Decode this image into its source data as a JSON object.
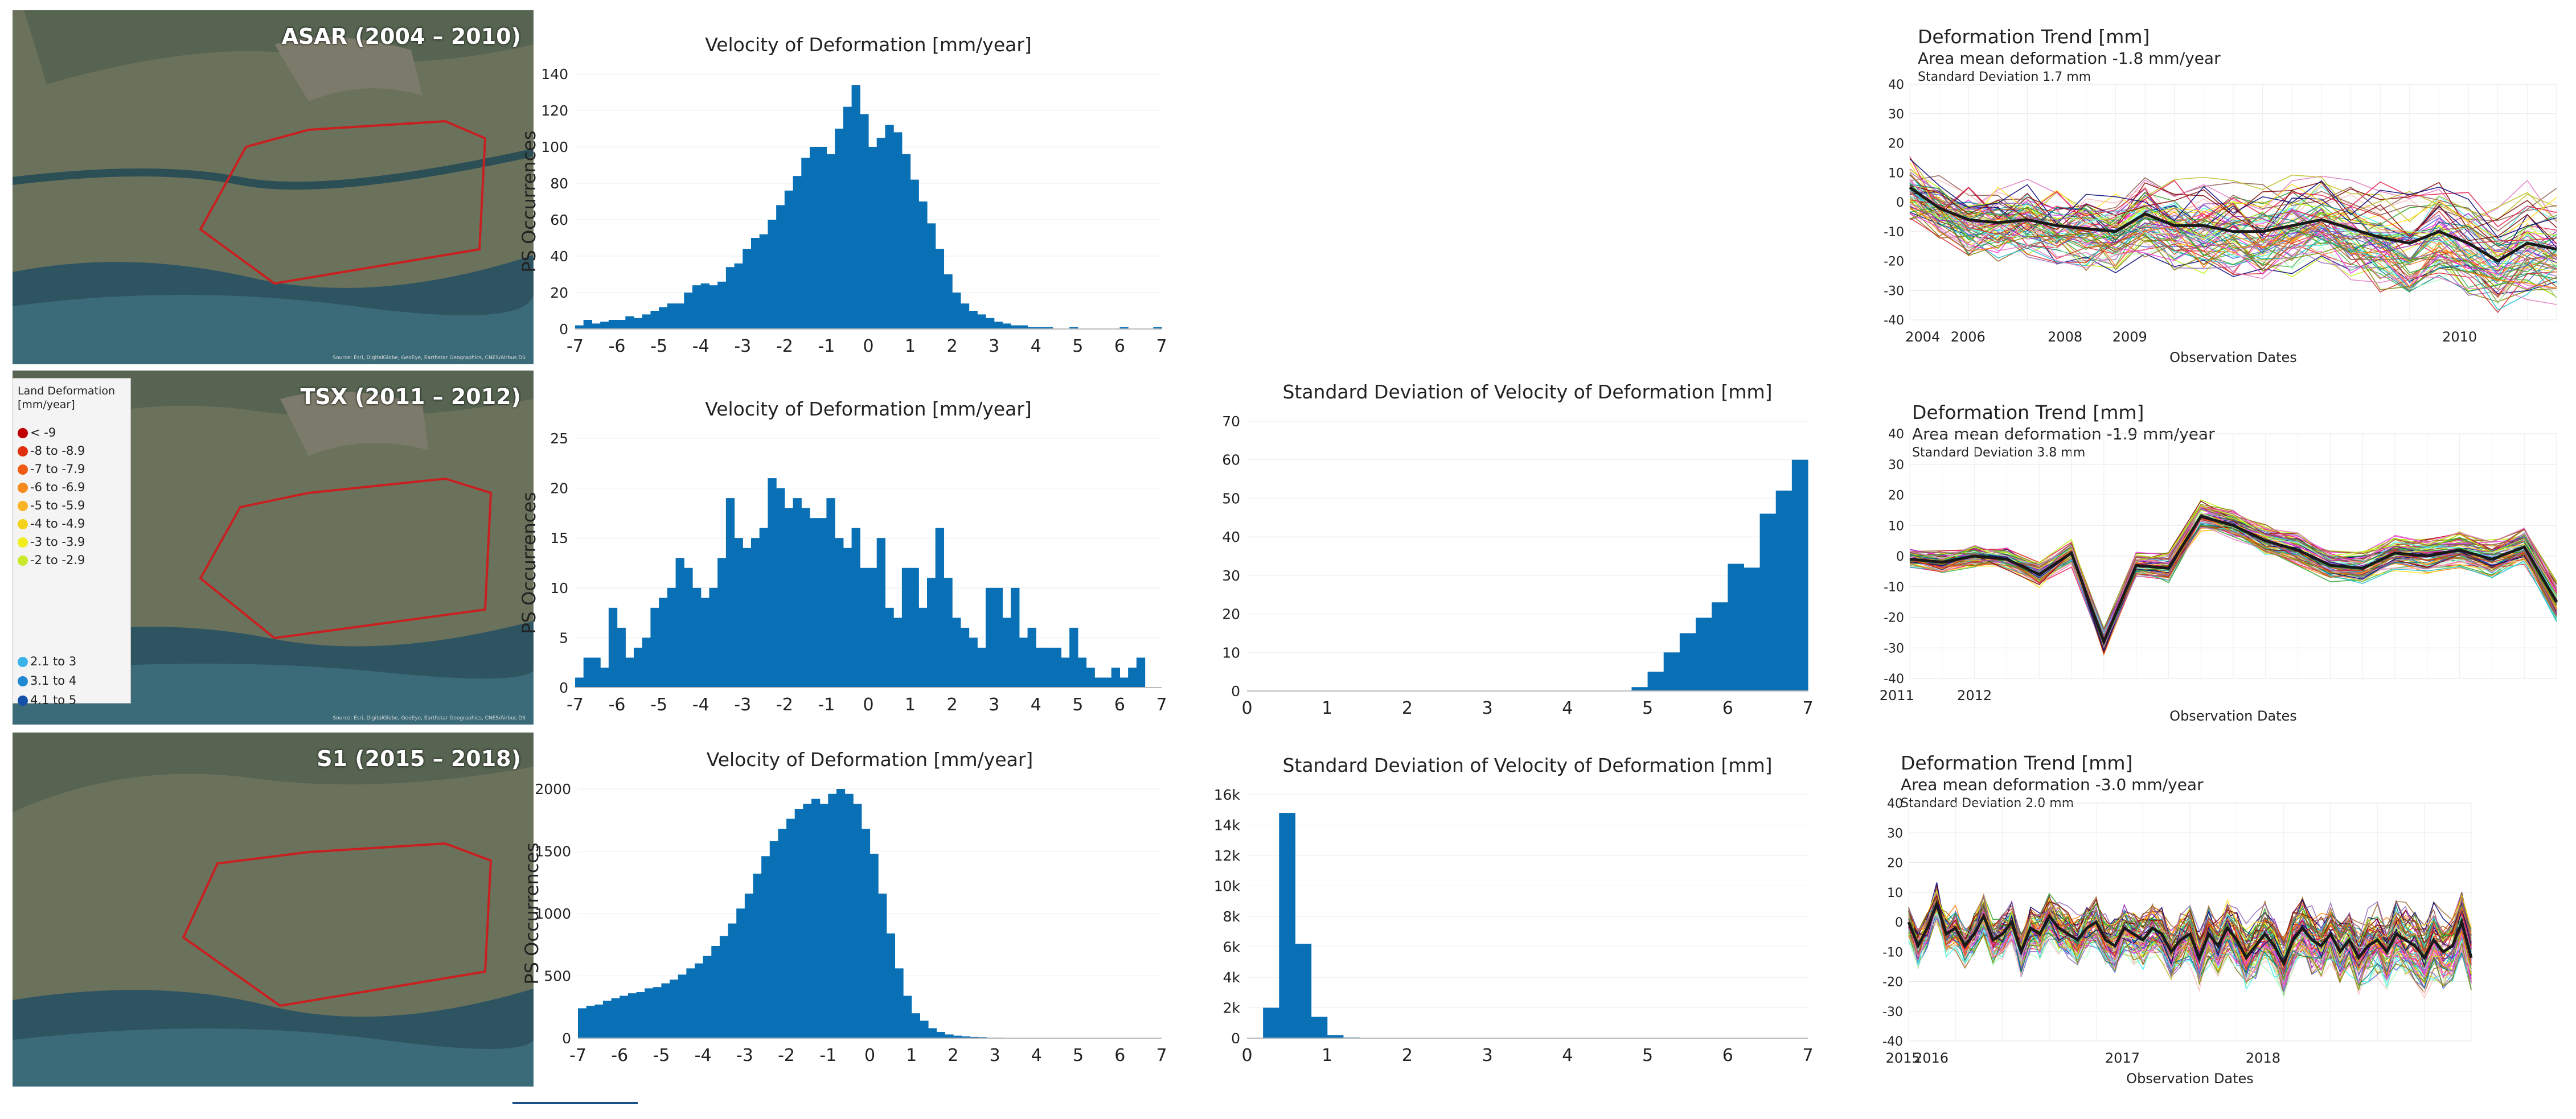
{
  "colors": {
    "bar": "#0a70b5",
    "mean_line": "#1a1a1a",
    "polygon": "#c82020"
  },
  "maps": [
    {
      "title": "ASAR (2004 – 2010)",
      "attribution": "Source: Esri, DigitalGlobe, GeoEye, Earthstar Geographics, CNES/Airbus DS"
    },
    {
      "title": "TSX (2011 – 2012)",
      "attribution": "Source: Esri, DigitalGlobe, GeoEye, Earthstar Geographics, CNES/Airbus DS"
    },
    {
      "title": "S1 (2015 – 2018)",
      "attribution": "Source: Esri, DigitalGlobe, GeoEye, Earthstar Geographics, CNES/Airbus DS"
    }
  ],
  "legend": {
    "title": "Land Deformation [mm/year]",
    "items": [
      {
        "label": "< -9",
        "color": "#c00000"
      },
      {
        "label": "-8 to -8.9",
        "color": "#e03010"
      },
      {
        "label": "-7 to -7.9",
        "color": "#f05a14"
      },
      {
        "label": "-6 to -6.9",
        "color": "#f58a1e"
      },
      {
        "label": "-5 to -5.9",
        "color": "#f8b425"
      },
      {
        "label": "-4 to -4.9",
        "color": "#f4d21c"
      },
      {
        "label": "-3 to -3.9",
        "color": "#f0ee20"
      },
      {
        "label": "-2 to -2.9",
        "color": "#c8ea2a"
      },
      {
        "label": "2.1 to 3",
        "color": "#3ab4e8"
      },
      {
        "label": "3.1 to 4",
        "color": "#2088d0"
      },
      {
        "label": "4.1 to 5",
        "color": "#1450a8"
      }
    ]
  },
  "chart_data": [
    {
      "id": "v1",
      "type": "bar",
      "title": "Velocity of Deformation [mm/year]",
      "ylabel": "PS Occurrences",
      "xlim": [
        -7,
        7
      ],
      "ylim": [
        0,
        140
      ],
      "xticks": [
        "-7",
        "-6",
        "-5",
        "-4",
        "-3",
        "-2",
        "-1",
        "0",
        "1",
        "2",
        "3",
        "4",
        "5",
        "6",
        "7"
      ],
      "yticks": [
        "0",
        "20",
        "40",
        "60",
        "80",
        "100",
        "120",
        "140"
      ],
      "bin_start": -7,
      "bin_width": 0.2,
      "values": [
        2,
        5,
        3,
        4,
        5,
        5,
        7,
        6,
        8,
        10,
        12,
        14,
        14,
        20,
        24,
        25,
        24,
        26,
        34,
        36,
        44,
        50,
        52,
        60,
        68,
        76,
        84,
        94,
        100,
        100,
        96,
        110,
        122,
        134,
        118,
        100,
        105,
        112,
        108,
        96,
        82,
        70,
        58,
        44,
        30,
        20,
        14,
        10,
        8,
        6,
        4,
        3,
        2,
        2,
        1,
        1,
        1,
        0,
        0,
        1,
        0,
        0,
        0,
        0,
        0,
        1,
        0,
        0,
        0,
        1,
        0
      ]
    },
    {
      "id": "v2",
      "type": "bar",
      "title": "Velocity of Deformation [mm/year]",
      "ylabel": "PS Occurrences",
      "xlim": [
        -7,
        7
      ],
      "ylim": [
        0,
        25
      ],
      "xticks": [
        "-7",
        "-6",
        "-5",
        "-4",
        "-3",
        "-2",
        "-1",
        "0",
        "1",
        "2",
        "3",
        "4",
        "5",
        "6",
        "7"
      ],
      "yticks": [
        "0",
        "5",
        "10",
        "15",
        "20",
        "25"
      ],
      "bin_start": -7,
      "bin_width": 0.2,
      "values": [
        1,
        3,
        3,
        2,
        8,
        6,
        3,
        4,
        5,
        8,
        9,
        10,
        13,
        12,
        10,
        9,
        10,
        13,
        19,
        15,
        14,
        15,
        16,
        21,
        20,
        18,
        19,
        18,
        17,
        17,
        19,
        15,
        14,
        16,
        12,
        12,
        15,
        8,
        7,
        12,
        12,
        8,
        11,
        16,
        11,
        7,
        6,
        5,
        4,
        10,
        10,
        7,
        10,
        5,
        6,
        4,
        4,
        4,
        3,
        6,
        3,
        2,
        1,
        1,
        2,
        1,
        2,
        3,
        0,
        0
      ]
    },
    {
      "id": "s2",
      "type": "bar",
      "title": "Standard Deviation of Velocity of Deformation [mm]",
      "ylabel": "",
      "xlim": [
        0,
        7
      ],
      "ylim": [
        0,
        70
      ],
      "xticks": [
        "0",
        "1",
        "2",
        "3",
        "4",
        "5",
        "6",
        "7"
      ],
      "yticks": [
        "0",
        "10",
        "20",
        "30",
        "40",
        "50",
        "60",
        "70"
      ],
      "bin_start": 0,
      "bin_width": 0.2,
      "values": [
        0,
        0,
        0,
        0,
        0,
        0,
        0,
        0,
        0,
        0,
        0,
        0,
        0,
        0,
        0,
        0,
        0,
        0,
        0,
        0,
        0,
        0,
        0,
        0,
        1,
        5,
        10,
        15,
        19,
        23,
        33,
        32,
        46,
        52,
        60
      ]
    },
    {
      "id": "v3",
      "type": "bar",
      "title": "Velocity of Deformation [mm/year]",
      "ylabel": "PS Occurrences",
      "xlim": [
        -7,
        7
      ],
      "ylim": [
        0,
        2000
      ],
      "xticks": [
        "-7",
        "-6",
        "-5",
        "-4",
        "-3",
        "-2",
        "-1",
        "0",
        "1",
        "2",
        "3",
        "4",
        "5",
        "6",
        "7"
      ],
      "yticks": [
        "0",
        "500",
        "1000",
        "1500",
        "2000"
      ],
      "bin_start": -7,
      "bin_width": 0.2,
      "values": [
        240,
        260,
        270,
        300,
        320,
        340,
        360,
        370,
        400,
        410,
        440,
        470,
        510,
        560,
        600,
        660,
        740,
        820,
        920,
        1040,
        1160,
        1320,
        1460,
        1580,
        1680,
        1760,
        1840,
        1880,
        1920,
        1880,
        1960,
        2080,
        1960,
        1880,
        1680,
        1480,
        1160,
        840,
        560,
        340,
        200,
        140,
        80,
        50,
        30,
        20,
        15,
        10,
        8,
        5,
        5,
        3,
        3,
        2,
        2,
        2,
        1,
        1,
        1,
        1,
        1,
        1,
        1,
        0,
        0,
        0,
        0,
        0,
        0,
        0
      ]
    },
    {
      "id": "s3",
      "type": "bar",
      "title": "Standard Deviation of Velocity of Deformation [mm]",
      "ylabel": "",
      "xlim": [
        0,
        7
      ],
      "ylim": [
        0,
        16000
      ],
      "xticks": [
        "0",
        "1",
        "2",
        "3",
        "4",
        "5",
        "6",
        "7"
      ],
      "yticks": [
        "0",
        "2k",
        "4k",
        "6k",
        "8k",
        "10k",
        "12k",
        "14k",
        "16k"
      ],
      "bin_start": 0,
      "bin_width": 0.2,
      "values": [
        0,
        2000,
        14800,
        6200,
        1400,
        200,
        50,
        20,
        10,
        5,
        5,
        0,
        0,
        0,
        0,
        0,
        0,
        0,
        0,
        0,
        0,
        0,
        0,
        0,
        0,
        0,
        0,
        0,
        0,
        0,
        0,
        0,
        0,
        0,
        0
      ]
    },
    {
      "id": "t1",
      "type": "line",
      "title": "Deformation Trend [mm]",
      "subtitle": "Area mean deformation -1.8 mm/year",
      "note": "Standard Deviation 1.7 mm",
      "xlabel": "Observation Dates",
      "ylim": [
        -40,
        40
      ],
      "yticks": [
        "-40",
        "-30",
        "-20",
        "-10",
        "0",
        "10",
        "20",
        "30",
        "40"
      ],
      "xticks": [
        "2004",
        "2006",
        "2008",
        "2009",
        "2010"
      ],
      "mean": [
        5,
        -2,
        -6,
        -7,
        -6,
        -8,
        -9,
        -10,
        -4,
        -8,
        -8,
        -10,
        -10,
        -8,
        -6,
        -9,
        -12,
        -14,
        -10,
        -14,
        -20,
        -14,
        -16
      ]
    },
    {
      "id": "t2",
      "type": "line",
      "title": "Deformation Trend [mm]",
      "subtitle": "Area mean deformation -1.9 mm/year",
      "note": "Standard Deviation 3.8 mm",
      "xlabel": "Observation Dates",
      "ylim": [
        -40,
        40
      ],
      "yticks": [
        "-40",
        "-30",
        "-20",
        "-10",
        "0",
        "10",
        "20",
        "30",
        "40"
      ],
      "xticks": [
        "2011",
        "2012"
      ],
      "mean": [
        -1,
        -2,
        0,
        -1,
        -6,
        1,
        -28,
        -3,
        -4,
        13,
        10,
        5,
        2,
        -3,
        -4,
        1,
        0,
        2,
        -1,
        3,
        -15
      ]
    },
    {
      "id": "t3",
      "type": "line",
      "title": "Deformation Trend [mm]",
      "subtitle": "Area mean deformation -3.0 mm/year",
      "note": "Standard Deviation 2.0 mm",
      "xlabel": "Observation Dates",
      "ylim": [
        -40,
        40
      ],
      "yticks": [
        "-40",
        "-30",
        "-20",
        "-10",
        "0",
        "10",
        "20",
        "30",
        "40"
      ],
      "xticks": [
        "2015",
        "2016",
        "2017",
        "2018"
      ],
      "mean": [
        0,
        -8,
        -2,
        6,
        -4,
        -2,
        -8,
        -4,
        2,
        -6,
        -4,
        0,
        -10,
        -2,
        -4,
        2,
        -2,
        -4,
        -6,
        -2,
        0,
        -6,
        -8,
        -2,
        -4,
        -6,
        -2,
        -4,
        -10,
        -6,
        -4,
        -12,
        -4,
        -8,
        -2,
        -6,
        -12,
        -8,
        -4,
        -8,
        -14,
        -6,
        -2,
        -6,
        -8,
        -4,
        -10,
        -6,
        -12,
        -8,
        -6,
        -10,
        -4,
        -6,
        -8,
        -12,
        -6,
        -10,
        -8,
        0,
        -12
      ]
    }
  ]
}
